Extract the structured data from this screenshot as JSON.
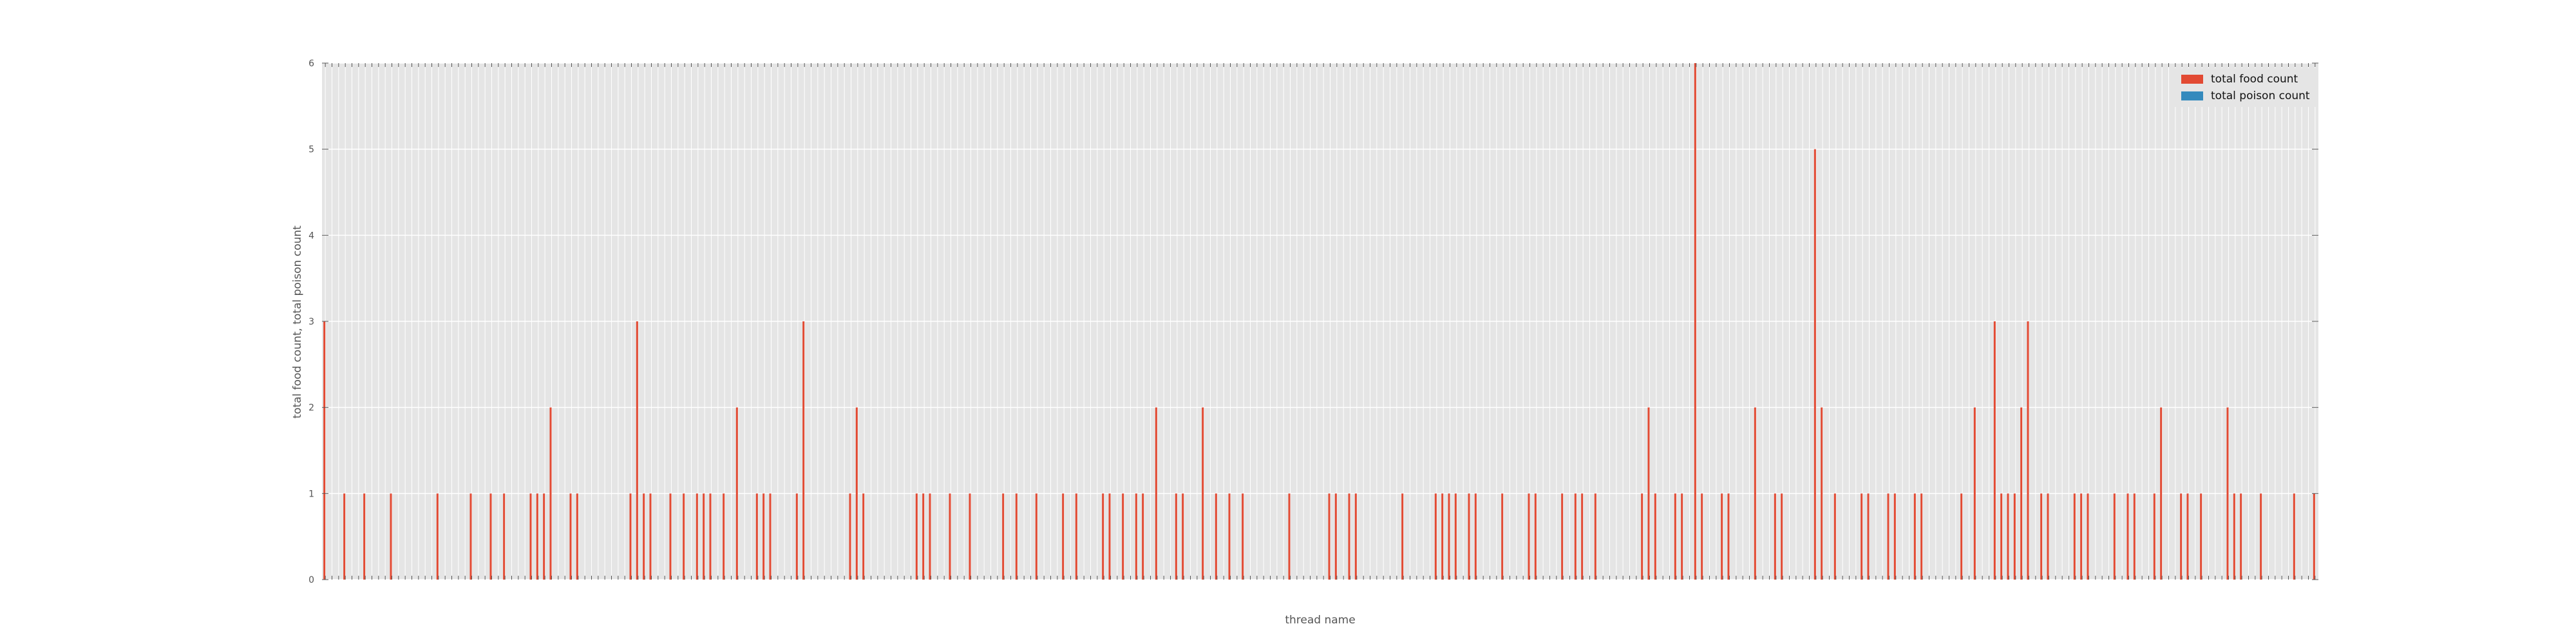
{
  "chart_data": {
    "type": "bar",
    "xlabel": "thread name",
    "ylabel": "total food count, total poison count",
    "ylim": [
      0,
      6
    ],
    "y_ticks": [
      "0",
      "1",
      "2",
      "3",
      "4",
      "5",
      "6"
    ],
    "category_count": 300,
    "grid": true,
    "legend_position": "top-right",
    "series": [
      {
        "name": "total food count",
        "color": "#e24a33",
        "nonzero": [
          [
            0,
            3
          ],
          [
            3,
            1
          ],
          [
            6,
            1
          ],
          [
            10,
            1
          ],
          [
            17,
            1
          ],
          [
            22,
            1
          ],
          [
            25,
            1
          ],
          [
            27,
            1
          ],
          [
            31,
            1
          ],
          [
            32,
            1
          ],
          [
            33,
            1
          ],
          [
            34,
            2
          ],
          [
            37,
            1
          ],
          [
            38,
            1
          ],
          [
            46,
            1
          ],
          [
            47,
            3
          ],
          [
            48,
            1
          ],
          [
            49,
            1
          ],
          [
            52,
            1
          ],
          [
            54,
            1
          ],
          [
            56,
            1
          ],
          [
            57,
            1
          ],
          [
            58,
            1
          ],
          [
            60,
            1
          ],
          [
            62,
            2
          ],
          [
            65,
            1
          ],
          [
            66,
            1
          ],
          [
            67,
            1
          ],
          [
            71,
            1
          ],
          [
            72,
            3
          ],
          [
            79,
            1
          ],
          [
            80,
            2
          ],
          [
            81,
            1
          ],
          [
            89,
            1
          ],
          [
            90,
            1
          ],
          [
            91,
            1
          ],
          [
            94,
            1
          ],
          [
            97,
            1
          ],
          [
            102,
            1
          ],
          [
            104,
            1
          ],
          [
            107,
            1
          ],
          [
            111,
            1
          ],
          [
            113,
            1
          ],
          [
            117,
            1
          ],
          [
            118,
            1
          ],
          [
            120,
            1
          ],
          [
            122,
            1
          ],
          [
            123,
            1
          ],
          [
            125,
            2
          ],
          [
            128,
            1
          ],
          [
            129,
            1
          ],
          [
            132,
            2
          ],
          [
            134,
            1
          ],
          [
            136,
            1
          ],
          [
            138,
            1
          ],
          [
            145,
            1
          ],
          [
            151,
            1
          ],
          [
            152,
            1
          ],
          [
            154,
            1
          ],
          [
            155,
            1
          ],
          [
            162,
            1
          ],
          [
            167,
            1
          ],
          [
            168,
            1
          ],
          [
            169,
            1
          ],
          [
            170,
            1
          ],
          [
            172,
            1
          ],
          [
            173,
            1
          ],
          [
            177,
            1
          ],
          [
            181,
            1
          ],
          [
            182,
            1
          ],
          [
            186,
            1
          ],
          [
            188,
            1
          ],
          [
            189,
            1
          ],
          [
            191,
            1
          ],
          [
            198,
            1
          ],
          [
            199,
            2
          ],
          [
            200,
            1
          ],
          [
            203,
            1
          ],
          [
            204,
            1
          ],
          [
            206,
            6
          ],
          [
            207,
            1
          ],
          [
            210,
            1
          ],
          [
            211,
            1
          ],
          [
            215,
            2
          ],
          [
            218,
            1
          ],
          [
            219,
            1
          ],
          [
            224,
            5
          ],
          [
            225,
            2
          ],
          [
            227,
            1
          ],
          [
            231,
            1
          ],
          [
            232,
            1
          ],
          [
            235,
            1
          ],
          [
            236,
            1
          ],
          [
            239,
            1
          ],
          [
            240,
            1
          ],
          [
            246,
            1
          ],
          [
            248,
            2
          ],
          [
            251,
            3
          ],
          [
            252,
            1
          ],
          [
            253,
            1
          ],
          [
            254,
            1
          ],
          [
            255,
            2
          ],
          [
            256,
            3
          ],
          [
            258,
            1
          ],
          [
            259,
            1
          ],
          [
            263,
            1
          ],
          [
            264,
            1
          ],
          [
            265,
            1
          ],
          [
            269,
            1
          ],
          [
            271,
            1
          ],
          [
            272,
            1
          ],
          [
            275,
            1
          ],
          [
            276,
            2
          ],
          [
            279,
            1
          ],
          [
            280,
            1
          ],
          [
            282,
            1
          ],
          [
            286,
            2
          ],
          [
            287,
            1
          ],
          [
            288,
            1
          ],
          [
            291,
            1
          ],
          [
            296,
            1
          ],
          [
            299,
            1
          ]
        ]
      },
      {
        "name": "total poison count",
        "color": "#348abd",
        "nonzero": []
      }
    ]
  }
}
